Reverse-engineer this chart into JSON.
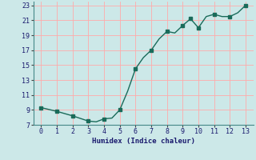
{
  "x": [
    0,
    1,
    2,
    3,
    3.5,
    4,
    4.5,
    5,
    5.5,
    6,
    6.5,
    7,
    7.5,
    8,
    8.5,
    9,
    9.5,
    10,
    10.5,
    11,
    11.5,
    12,
    12.5,
    13
  ],
  "y": [
    9.3,
    8.8,
    8.2,
    7.5,
    7.4,
    7.8,
    7.9,
    9.0,
    11.5,
    14.5,
    16.0,
    17.0,
    18.5,
    19.5,
    19.3,
    20.3,
    21.2,
    20.0,
    21.5,
    21.8,
    21.5,
    21.5,
    22.0,
    23.0
  ],
  "dot_x": [
    0,
    1,
    2,
    3,
    4,
    5,
    6,
    7,
    8,
    9,
    9.5,
    10,
    11,
    12,
    13
  ],
  "dot_y": [
    9.3,
    8.8,
    8.2,
    7.5,
    7.8,
    9.0,
    14.5,
    17.0,
    19.5,
    20.3,
    21.2,
    20.0,
    21.8,
    21.5,
    23.0
  ],
  "xlim": [
    -0.5,
    13.5
  ],
  "ylim": [
    7,
    23.5
  ],
  "xticks": [
    0,
    1,
    2,
    3,
    4,
    5,
    6,
    7,
    8,
    9,
    10,
    11,
    12,
    13
  ],
  "yticks": [
    7,
    9,
    11,
    13,
    15,
    17,
    19,
    21,
    23
  ],
  "xlabel": "Humidex (Indice chaleur)",
  "line_color": "#1a6b5a",
  "bg_color": "#cce8e8",
  "grid_major_color": "#ffaaaa",
  "grid_minor_color": "#e0f0f0"
}
